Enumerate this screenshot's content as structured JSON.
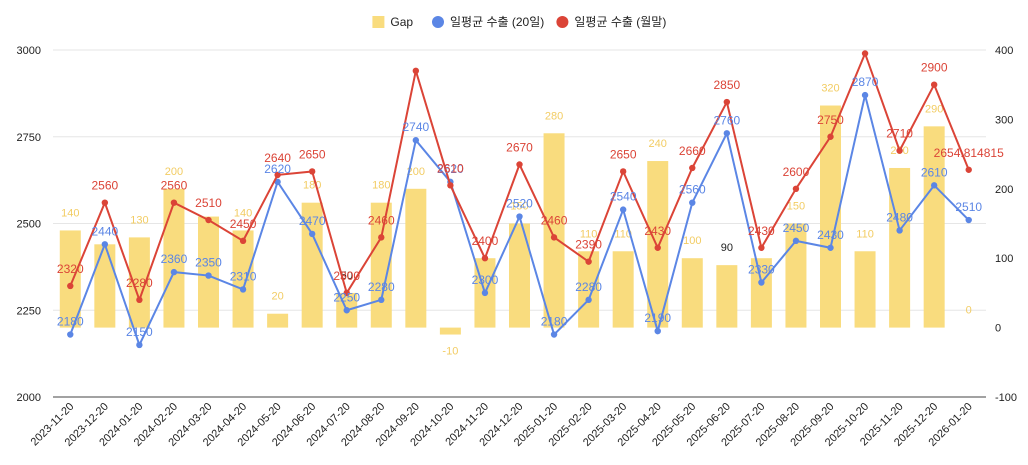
{
  "chart_data": {
    "type": "bar+line",
    "legend_position": "top-center",
    "legend": [
      {
        "key": "gap",
        "label": "Gap",
        "color": "#F9DC7E",
        "marker": "square"
      },
      {
        "key": "avg20",
        "label": "일평균 수출 (20일)",
        "color": "#5B86E5",
        "marker": "circle"
      },
      {
        "key": "month",
        "label": "일평균 수출 (월말)",
        "color": "#DB4437",
        "marker": "circle"
      }
    ],
    "categories": [
      "2023-11-20",
      "2023-12-20",
      "2024-01-20",
      "2024-02-20",
      "2024-03-20",
      "2024-04-20",
      "2024-05-20",
      "2024-06-20",
      "2024-07-20",
      "2024-08-20",
      "2024-09-20",
      "2024-10-20",
      "2024-11-20",
      "2024-12-20",
      "2025-01-20",
      "2025-02-20",
      "2025-03-20",
      "2025-04-20",
      "2025-05-20",
      "2025-06-20",
      "2025-07-20",
      "2025-08-20",
      "2025-09-20",
      "2025-10-20",
      "2025-11-20",
      "2025-12-20",
      "2026-01-20"
    ],
    "series": [
      {
        "name": "일평균 수출 (20일)",
        "key": "avg20",
        "type": "line",
        "axis": "left",
        "values": [
          2180,
          2440,
          2150,
          2360,
          2350,
          2310,
          2620,
          2470,
          2250,
          2280,
          2740,
          2620,
          2300,
          2520,
          2180,
          2280,
          2540,
          2190,
          2560,
          2760,
          2330,
          2450,
          2430,
          2870,
          2480,
          2610,
          2510
        ],
        "labels": [
          "2180",
          "2440",
          "2150",
          "2360",
          "2350",
          "2310",
          "2620",
          "2470",
          "2250",
          "2280",
          "2740",
          "2620",
          "2300",
          "2520",
          "2180",
          "2280",
          "2540",
          "2190",
          "2560",
          "2760",
          "2330",
          "2450",
          "2430",
          "2870",
          "2480",
          "2610",
          "2510"
        ]
      },
      {
        "name": "일평균 수출 (월말)",
        "key": "month",
        "type": "line",
        "axis": "left",
        "values": [
          2320,
          2560,
          2280,
          2560,
          2510,
          2450,
          2640,
          2650,
          2300,
          2460,
          2940,
          2610,
          2400,
          2670,
          2460,
          2390,
          2650,
          2430,
          2660,
          2850,
          2430,
          2600,
          2750,
          2990,
          2710,
          2900,
          2654.814815
        ],
        "labels": [
          "2320",
          "2560",
          "2280",
          "2560",
          "2510",
          "2450",
          "2640",
          "2650",
          "2300",
          "2460",
          "",
          "2610",
          "2400",
          "2670",
          "2460",
          "2390",
          "2650",
          "2430",
          "2660",
          "2850",
          "2430",
          "2600",
          "2750",
          "",
          "2710",
          "2900",
          "2654.814815"
        ]
      },
      {
        "name": "Gap",
        "key": "gap",
        "type": "bar",
        "axis": "right",
        "values": [
          140,
          120,
          130,
          200,
          160,
          140,
          20,
          180,
          50,
          180,
          200,
          -10,
          100,
          150,
          280,
          110,
          110,
          240,
          100,
          90,
          100,
          150,
          320,
          110,
          230,
          290,
          0
        ],
        "labels": [
          "140",
          "",
          "130",
          "200",
          "",
          "140",
          "20",
          "180",
          "50",
          "180",
          "200",
          "-10",
          "",
          "150",
          "280",
          "110",
          "110",
          "240",
          "100",
          "90",
          "",
          "150",
          "320",
          "110",
          "230",
          "290",
          "0"
        ]
      }
    ],
    "left_axis": {
      "ylim": [
        2000,
        3000
      ],
      "ticks": [
        2000,
        2250,
        2500,
        2750,
        3000
      ]
    },
    "right_axis": {
      "ylim": [
        -100,
        400
      ],
      "ticks": [
        -100,
        0,
        100,
        200,
        300,
        400
      ]
    },
    "title": "",
    "xlabel": "",
    "ylabel": "",
    "grid": true
  }
}
